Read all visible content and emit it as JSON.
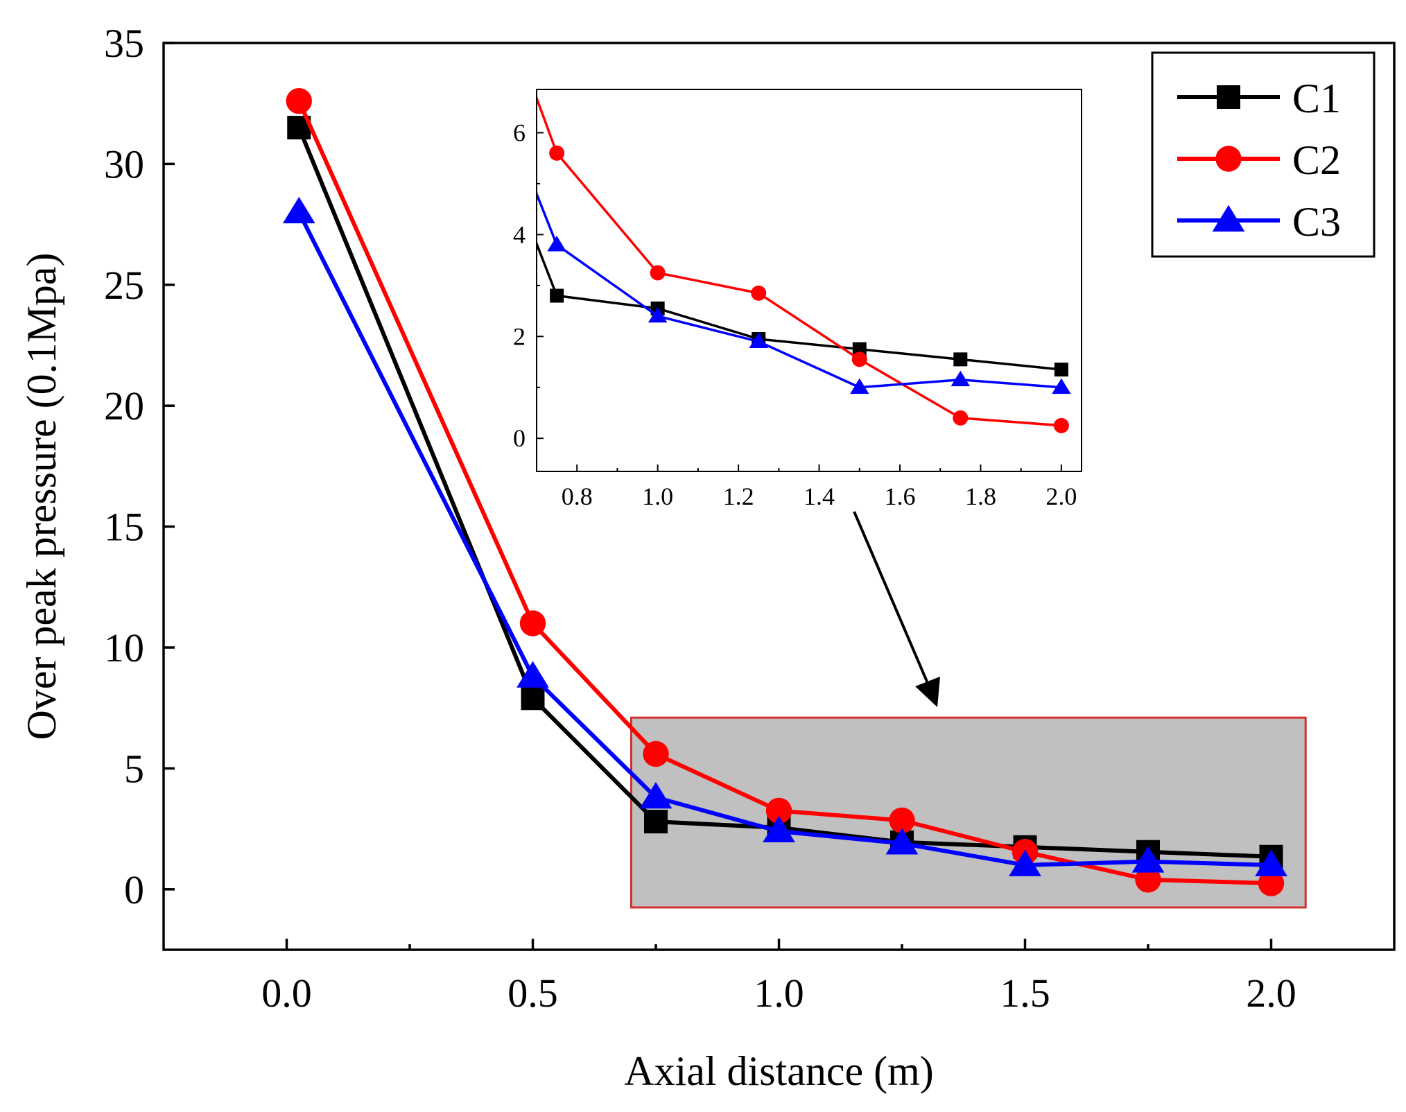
{
  "chart_data": {
    "type": "line",
    "main": {
      "xlabel": "Axial distance (m)",
      "ylabel": "Over peak pressure (0.1Mpa)",
      "xlim": [
        -0.25,
        2.25
      ],
      "ylim": [
        -2.5,
        35
      ],
      "xticks": [
        0.0,
        0.5,
        1.0,
        1.5,
        2.0
      ],
      "xtick_labels": [
        "0.0",
        "0.5",
        "1.0",
        "1.5",
        "2.0"
      ],
      "yticks": [
        0,
        5,
        10,
        15,
        20,
        25,
        30,
        35
      ],
      "ytick_labels": [
        "0",
        "5",
        "10",
        "15",
        "20",
        "25",
        "30",
        "35"
      ],
      "series": [
        {
          "name": "C1",
          "color": "#000000",
          "marker": "square",
          "x": [
            0.025,
            0.5,
            0.75,
            1.0,
            1.25,
            1.5,
            1.75,
            2.0
          ],
          "y": [
            31.5,
            7.9,
            2.8,
            2.55,
            1.95,
            1.75,
            1.55,
            1.35
          ]
        },
        {
          "name": "C2",
          "color": "#ff0000",
          "marker": "circle",
          "x": [
            0.025,
            0.5,
            0.75,
            1.0,
            1.25,
            1.5,
            1.75,
            2.0
          ],
          "y": [
            32.6,
            11.0,
            5.6,
            3.25,
            2.85,
            1.55,
            0.4,
            0.25
          ]
        },
        {
          "name": "C3",
          "color": "#0000ff",
          "marker": "triangle",
          "x": [
            0.025,
            0.5,
            0.75,
            1.0,
            1.25,
            1.5,
            1.75,
            2.0
          ],
          "y": [
            28.0,
            8.8,
            3.8,
            2.4,
            1.9,
            1.0,
            1.15,
            1.0
          ]
        }
      ],
      "highlight_region": {
        "x": [
          0.7,
          2.07
        ],
        "y": [
          -0.75,
          7.1
        ],
        "fill": "#c0c0c0",
        "stroke": "#d03030"
      }
    },
    "inset": {
      "xlim": [
        0.7,
        2.05
      ],
      "ylim": [
        -0.65,
        6.85
      ],
      "xticks": [
        0.8,
        1.0,
        1.2,
        1.4,
        1.6,
        1.8,
        2.0
      ],
      "xtick_labels": [
        "0.8",
        "1.0",
        "1.2",
        "1.4",
        "1.6",
        "1.8",
        "2.0"
      ],
      "yticks": [
        0,
        2,
        4,
        6
      ],
      "ytick_labels": [
        "0",
        "2",
        "4",
        "6"
      ]
    },
    "legend": {
      "location": "top-right",
      "entries": [
        "C1",
        "C2",
        "C3"
      ]
    }
  }
}
